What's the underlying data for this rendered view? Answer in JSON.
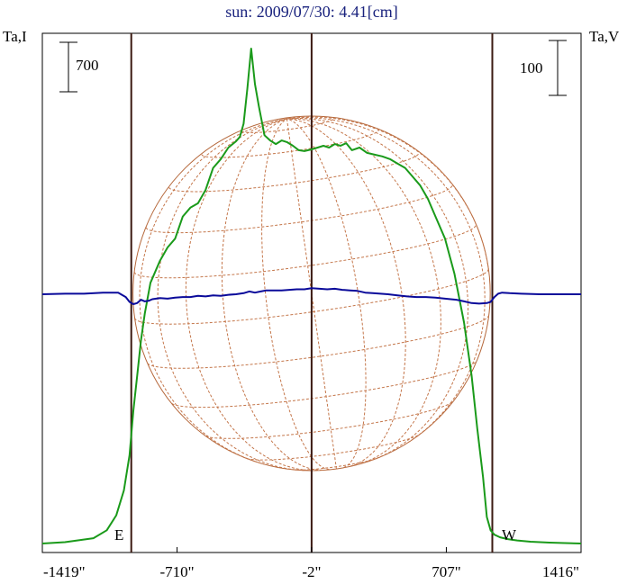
{
  "chart_data": {
    "type": "line",
    "title": "sun: 2009/07/30: 4.41[cm]",
    "left_axis_label": "Ta,I",
    "right_axis_label": "Ta,V",
    "scale_bar_left": "700",
    "scale_bar_right": "100",
    "limb_label_east": "E",
    "limb_label_west": "W",
    "x_ticks": [
      {
        "value": -1419,
        "label": "-1419\""
      },
      {
        "value": -710,
        "label": "-710\""
      },
      {
        "value": -2,
        "label": "-2\""
      },
      {
        "value": 707,
        "label": "707\""
      },
      {
        "value": 1416,
        "label": "1416\""
      }
    ],
    "xlim": [
      -1419,
      1416
    ],
    "vertical_lines_x": [
      -951,
      -2,
      949
    ],
    "disk_center_x": -2,
    "disk_radius_arcsec": 940,
    "colors": {
      "title": "#1a237e",
      "intensity": "#1a9a1a",
      "polarization": "#0a0a9a",
      "disk": "#b5673a",
      "grid": "#c4764a",
      "markers": "#3b1a12"
    },
    "series": [
      {
        "name": "Ta,I",
        "x": [
          -1419,
          -1300,
          -1150,
          -1080,
          -1030,
          -990,
          -960,
          -940,
          -920,
          -900,
          -880,
          -850,
          -800,
          -760,
          -720,
          -680,
          -640,
          -600,
          -560,
          -520,
          -480,
          -440,
          -400,
          -380,
          -360,
          -340,
          -320,
          -300,
          -280,
          -250,
          -220,
          -190,
          -160,
          -130,
          -100,
          -70,
          -40,
          -2,
          30,
          60,
          90,
          120,
          150,
          180,
          210,
          250,
          290,
          330,
          370,
          410,
          450,
          490,
          530,
          570,
          610,
          650,
          700,
          750,
          800,
          840,
          870,
          900,
          920,
          940,
          960,
          990,
          1030,
          1080,
          1150,
          1250,
          1330,
          1416
        ],
        "y": [
          0,
          15,
          60,
          150,
          320,
          600,
          1000,
          1500,
          1900,
          2300,
          2600,
          2950,
          3200,
          3350,
          3450,
          3700,
          3800,
          3850,
          4000,
          4250,
          4350,
          4480,
          4550,
          4600,
          4750,
          5150,
          5600,
          5200,
          4950,
          4620,
          4560,
          4520,
          4560,
          4540,
          4500,
          4450,
          4440,
          4460,
          4480,
          4500,
          4480,
          4520,
          4500,
          4530,
          4450,
          4480,
          4420,
          4400,
          4380,
          4350,
          4300,
          4250,
          4150,
          4050,
          3900,
          3700,
          3450,
          3050,
          2500,
          1900,
          1300,
          750,
          300,
          150,
          100,
          70,
          50,
          35,
          20,
          10,
          5,
          0
        ]
      },
      {
        "name": "Ta,V",
        "x": [
          -1419,
          -1300,
          -1200,
          -1100,
          -1020,
          -980,
          -960,
          -940,
          -920,
          -900,
          -880,
          -860,
          -840,
          -800,
          -760,
          -720,
          -680,
          -640,
          -600,
          -560,
          -520,
          -480,
          -440,
          -400,
          -360,
          -330,
          -300,
          -270,
          -240,
          -200,
          -160,
          -120,
          -80,
          -40,
          -2,
          40,
          80,
          120,
          160,
          200,
          240,
          280,
          320,
          360,
          400,
          450,
          500,
          550,
          600,
          650,
          700,
          760,
          800,
          840,
          880,
          920,
          940,
          960,
          980,
          1000,
          1040,
          1100,
          1200,
          1300,
          1416
        ],
        "y": [
          0,
          1,
          1,
          3,
          3,
          -5,
          -14,
          -18,
          -16,
          -10,
          -13,
          -12,
          -9,
          -7,
          -8,
          -6,
          -5,
          -5,
          -3,
          -4,
          -2,
          -3,
          -1,
          0,
          2,
          5,
          3,
          5,
          7,
          7,
          7,
          8,
          9,
          9,
          11,
          10,
          9,
          10,
          8,
          7,
          6,
          3,
          2,
          1,
          0,
          -2,
          -4,
          -5,
          -5,
          -6,
          -8,
          -10,
          -13,
          -16,
          -17,
          -16,
          -14,
          -5,
          1,
          3,
          2,
          1,
          0,
          0,
          0
        ]
      }
    ]
  }
}
